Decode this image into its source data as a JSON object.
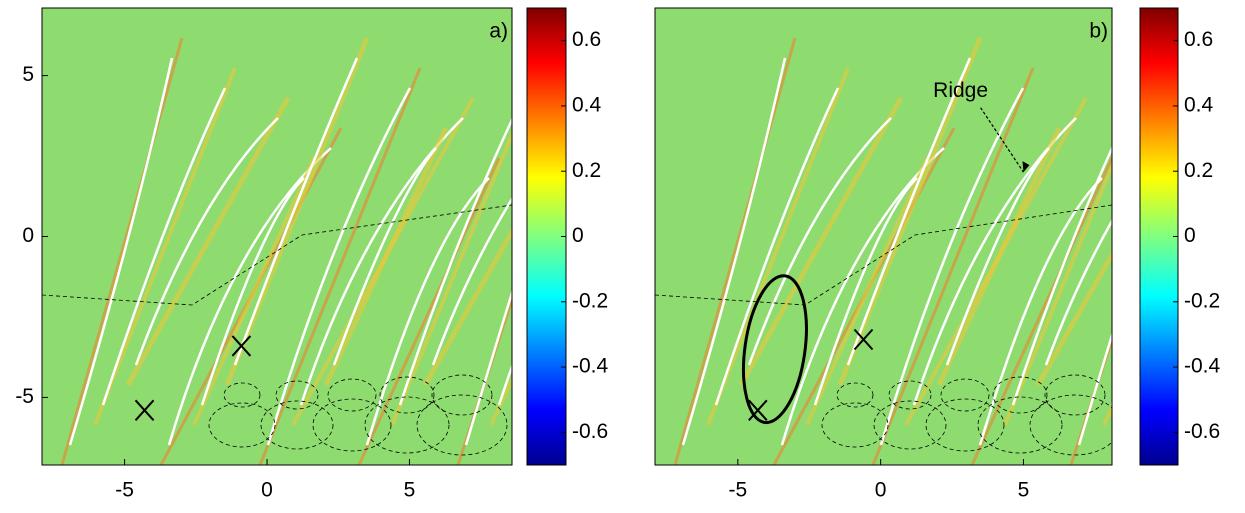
{
  "chart_data": [
    {
      "type": "heatmap",
      "panel_label": "a)",
      "xlim": [
        -7.9,
        8.6
      ],
      "ylim": [
        -7.1,
        7.1
      ],
      "xticks": [
        -5,
        0,
        5
      ],
      "yticks": [
        -5,
        0,
        5
      ],
      "clim": [
        -0.7,
        0.7
      ],
      "cticks": [
        -0.6,
        -0.4,
        -0.2,
        0,
        0.2,
        0.4,
        0.6
      ],
      "markers": {
        "x": [
          -4.3,
          -0.9
        ],
        "y": [
          -5.4,
          -3.4
        ]
      }
    },
    {
      "type": "heatmap",
      "panel_label": "b)",
      "xlim": [
        -7.9,
        8.1
      ],
      "ylim": [
        -7.1,
        7.1
      ],
      "xticks": [
        -5,
        0,
        5
      ],
      "clim": [
        -0.7,
        0.7
      ],
      "cticks": [
        -0.6,
        -0.4,
        -0.2,
        0,
        0.2,
        0.4,
        0.6
      ],
      "markers": {
        "x": [
          -4.3,
          -0.6
        ],
        "y": [
          -5.4,
          -3.2
        ]
      },
      "ellipse": {
        "cx": -3.7,
        "cy": -3.5,
        "rx": 1.05,
        "ry": 2.3
      },
      "annotation": {
        "text": "Ridge",
        "x": 2.8,
        "y": 4.5,
        "arrow_x": 5.0,
        "arrow_y": 2.0
      }
    }
  ]
}
